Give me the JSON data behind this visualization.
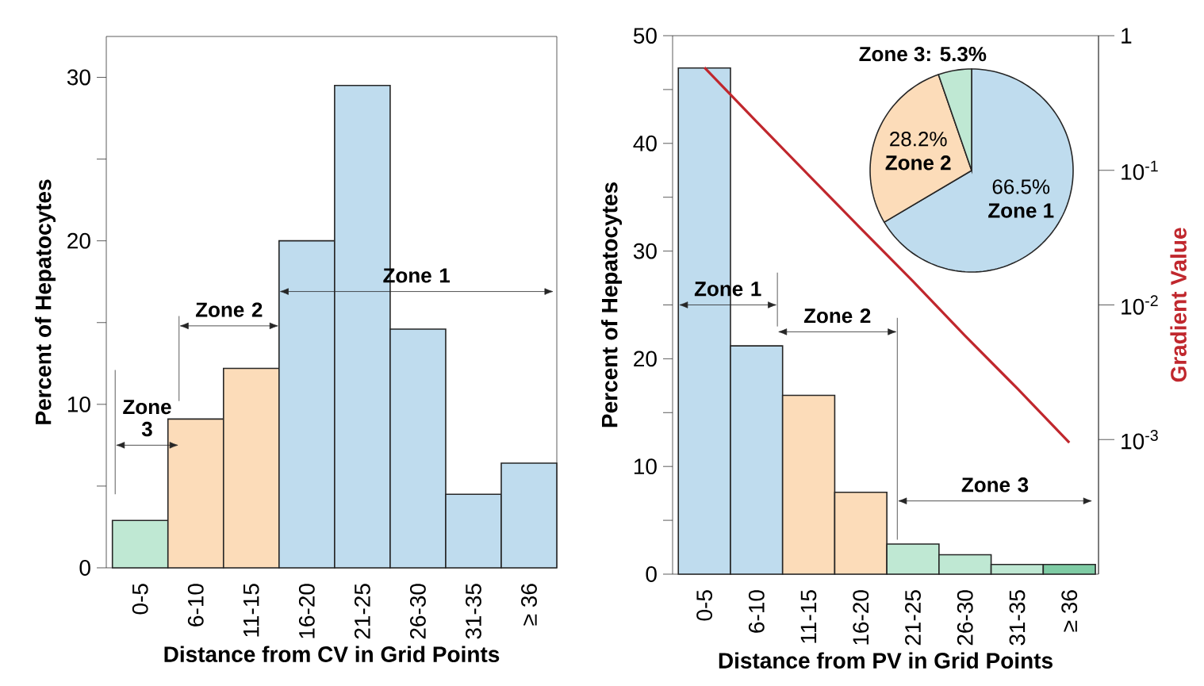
{
  "chart_data": [
    {
      "type": "bar",
      "xlabel": "Distance from CV in Grid Points",
      "ylabel": "Percent of Hepatocytes",
      "categories": [
        "0-5",
        "6-10",
        "11-15",
        "16-20",
        "21-25",
        "26-30",
        "31-35",
        "≥ 36"
      ],
      "values": [
        2.9,
        9.1,
        12.2,
        20.0,
        29.5,
        14.6,
        4.5,
        6.4
      ],
      "colors": [
        "#bfe8d3",
        "#fcdcb9",
        "#fcdcb9",
        "#bfdcee",
        "#bfdcee",
        "#bfdcee",
        "#bfdcee",
        "#bfdcee"
      ],
      "ylim": [
        0,
        32.5
      ],
      "yticks": [
        0,
        10,
        20,
        30,
        {
          "value": 5,
          "label": null
        },
        {
          "value": 15,
          "label": null
        },
        {
          "value": 25,
          "label": null
        }
      ],
      "annotations": [
        "Zone 3",
        "Zone 2",
        "Zone 1"
      ]
    },
    {
      "type": "bar",
      "xlabel": "Distance from PV in Grid Points",
      "ylabel": "Percent of Hepatocytes",
      "y2label": "Gradient Value",
      "categories": [
        "0-5",
        "6-10",
        "11-15",
        "16-20",
        "21-25",
        "26-30",
        "31-35",
        "≥ 36"
      ],
      "series": [
        {
          "type": "bar",
          "values": [
            47.0,
            21.2,
            16.6,
            7.6,
            2.8,
            1.8,
            0.9,
            0.9
          ],
          "colors": [
            "#bfdcee",
            "#bfdcee",
            "#fcdcb9",
            "#fcdcb9",
            "#bfe8d3",
            "#bfe8d3",
            "#bfe8d3",
            "#7ecba4"
          ]
        },
        {
          "type": "line",
          "axis": "y2",
          "values": [
            0.58,
            0.23,
            0.092,
            0.037,
            0.015,
            0.0059,
            0.0024,
            0.00095
          ],
          "color": "#c0272d"
        }
      ],
      "ylim": [
        0,
        50
      ],
      "yticks": [
        0,
        10,
        20,
        30,
        40,
        50,
        {
          "value": 5,
          "label": null
        },
        {
          "value": 15,
          "label": null
        },
        {
          "value": 25,
          "label": null
        },
        {
          "value": 35,
          "label": null
        },
        {
          "value": 45,
          "label": null
        }
      ],
      "log": "y2",
      "y2lim": [
        0.0001,
        1
      ],
      "y2ticks": [
        1,
        {
          "value": 0.1,
          "label": "10$^{-1}$"
        },
        {
          "value": 0.01,
          "label": "10$^{-2}$"
        },
        {
          "value": 0.001,
          "label": "10$^{-3}$"
        }
      ],
      "annotations": [
        "Zone 1",
        "Zone 2",
        "Zone 3"
      ]
    },
    {
      "type": "pie",
      "categories": [
        "Zone 1",
        "Zone 2",
        "Zone 3"
      ],
      "values": [
        66.5,
        28.2,
        5.3
      ],
      "colors": [
        "#bfdcee",
        "#fcdcb9",
        "#bfe8d3"
      ],
      "value_labels": [
        "66.5%",
        "28.2%",
        ": 5.3%"
      ]
    }
  ]
}
